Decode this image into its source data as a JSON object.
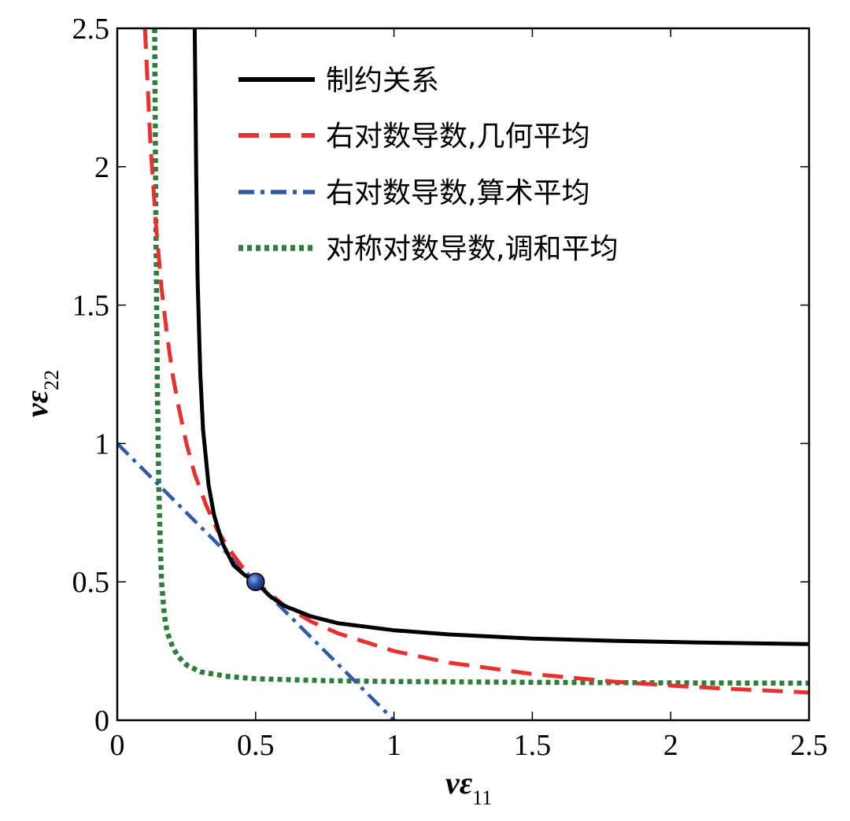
{
  "chart_data": {
    "type": "line",
    "xlabel": "vε",
    "xlabel_sub": "11",
    "ylabel": "vε",
    "ylabel_sub": "22",
    "xlim": [
      0,
      2.5
    ],
    "ylim": [
      0,
      2.5
    ],
    "xticks": [
      0,
      0.5,
      1,
      1.5,
      2,
      2.5
    ],
    "yticks": [
      0,
      0.5,
      1,
      1.5,
      2,
      2.5
    ],
    "xtick_labels": [
      "0",
      "0.5",
      "1",
      "1.5",
      "2",
      "2.5"
    ],
    "ytick_labels": [
      "0",
      "0.5",
      "1",
      "1.5",
      "2",
      "2.5"
    ],
    "grid": false,
    "legend_position": "top-right",
    "series": [
      {
        "name": "制约关系",
        "color": "#000000",
        "style": "solid",
        "x": [
          0.28,
          0.285,
          0.29,
          0.3,
          0.31,
          0.33,
          0.35,
          0.38,
          0.42,
          0.46,
          0.5,
          0.55,
          0.6,
          0.7,
          0.8,
          1.0,
          1.2,
          1.5,
          1.8,
          2.1,
          2.5
        ],
        "y": [
          2.5,
          2.0,
          1.6,
          1.25,
          1.05,
          0.85,
          0.74,
          0.64,
          0.56,
          0.525,
          0.5,
          0.45,
          0.415,
          0.375,
          0.35,
          0.325,
          0.31,
          0.295,
          0.287,
          0.281,
          0.275
        ]
      },
      {
        "name": "右对数导数,几何平均",
        "color": "#e8312f",
        "style": "dashed",
        "x": [
          0.1,
          0.12,
          0.14,
          0.16,
          0.18,
          0.2,
          0.22,
          0.25,
          0.28,
          0.32,
          0.36,
          0.4,
          0.45,
          0.5,
          0.6,
          0.7,
          0.8,
          1.0,
          1.2,
          1.5,
          1.8,
          2.0,
          2.2,
          2.5
        ],
        "y": [
          2.5,
          2.08,
          1.79,
          1.56,
          1.39,
          1.25,
          1.14,
          1.0,
          0.89,
          0.78,
          0.69,
          0.625,
          0.556,
          0.5,
          0.417,
          0.357,
          0.313,
          0.25,
          0.208,
          0.167,
          0.139,
          0.125,
          0.114,
          0.1
        ]
      },
      {
        "name": "右对数导数,算术平均",
        "color": "#2e5aa8",
        "style": "dashdot",
        "x": [
          0,
          1
        ],
        "y": [
          1,
          0
        ]
      },
      {
        "name": "对称对数导数,调和平均",
        "color": "#2e7d3a",
        "style": "dotted",
        "x": [
          0.135,
          0.14,
          0.145,
          0.15,
          0.155,
          0.16,
          0.17,
          0.18,
          0.2,
          0.22,
          0.25,
          0.3,
          0.4,
          0.5,
          0.75,
          1.0,
          1.5,
          2.0,
          2.5
        ],
        "y": [
          2.5,
          1.75,
          1.2,
          0.85,
          0.65,
          0.5,
          0.38,
          0.32,
          0.265,
          0.23,
          0.2,
          0.175,
          0.158,
          0.15,
          0.143,
          0.14,
          0.137,
          0.135,
          0.134
        ]
      }
    ],
    "marker": {
      "x": 0.5,
      "y": 0.5,
      "color": "#2a4fa8"
    }
  }
}
